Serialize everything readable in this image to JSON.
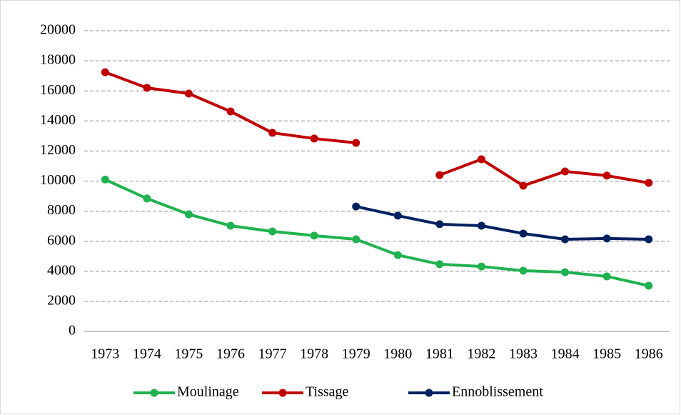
{
  "chart_data": {
    "type": "line",
    "categories": [
      "1973",
      "1974",
      "1975",
      "1976",
      "1977",
      "1978",
      "1979",
      "1980",
      "1981",
      "1982",
      "1983",
      "1984",
      "1985",
      "1986"
    ],
    "series": [
      {
        "name": "Moulinage",
        "color": "#1fb24f",
        "values": [
          10100,
          8840,
          7790,
          7030,
          6650,
          6370,
          6130,
          5080,
          4470,
          4320,
          4040,
          3940,
          3660,
          3040
        ]
      },
      {
        "name": "Tissage",
        "color": "#c00000",
        "values": [
          17240,
          16200,
          15820,
          14630,
          13210,
          12830,
          12540,
          null,
          10400,
          11450,
          9690,
          10640,
          10360,
          9880
        ]
      },
      {
        "name": "Ennoblissement",
        "color": "#002060",
        "values": [
          null,
          null,
          null,
          null,
          null,
          null,
          8310,
          7700,
          7130,
          7030,
          6510,
          6130,
          6180,
          6130
        ]
      }
    ],
    "ylim": [
      0,
      20000
    ],
    "yticks": [
      0,
      2000,
      4000,
      6000,
      8000,
      10000,
      12000,
      14000,
      16000,
      18000,
      20000
    ],
    "grid": true,
    "legend": "bottom"
  }
}
